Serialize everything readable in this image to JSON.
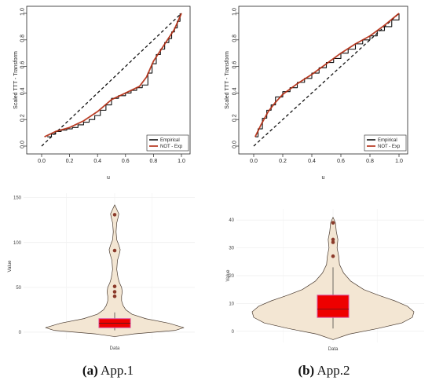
{
  "captions": [
    {
      "letter": "(a)",
      "text": " App.1"
    },
    {
      "letter": "(b)",
      "text": " App.2"
    }
  ],
  "colors": {
    "empirical": "#111111",
    "not_exp": "#b22a10",
    "diagonal": "#111111",
    "violin_fill": "#f3e6d3",
    "violin_edge": "#4a3b30",
    "box_fill": "#ee0000",
    "box_edge": "#d84a9a",
    "outlier": "#8b3a2a"
  },
  "chart_data": [
    {
      "type": "line",
      "id": "ttt-app1",
      "ylabel": "Scaled TTT - Transform",
      "xlabel": "u",
      "xlim": [
        0,
        1
      ],
      "ylim": [
        0,
        1
      ],
      "xticks": [
        "0.0",
        "0.2",
        "0.4",
        "0.6",
        "0.8",
        "1.0"
      ],
      "yticks": [
        "0.0",
        "0.2",
        "0.4",
        "0.6",
        "0.8",
        "1.0"
      ],
      "legend": {
        "position": "bottom-right",
        "entries": [
          "Empirical",
          "NOT - Exp"
        ]
      },
      "series": [
        {
          "name": "Empirical",
          "x": [
            0.04,
            0.07,
            0.1,
            0.14,
            0.18,
            0.22,
            0.26,
            0.3,
            0.34,
            0.38,
            0.42,
            0.46,
            0.5,
            0.55,
            0.6,
            0.64,
            0.68,
            0.72,
            0.76,
            0.79,
            0.82,
            0.85,
            0.88,
            0.91,
            0.93,
            0.95,
            0.97,
            0.99
          ],
          "y": [
            0.07,
            0.09,
            0.11,
            0.12,
            0.13,
            0.14,
            0.16,
            0.18,
            0.2,
            0.23,
            0.27,
            0.31,
            0.36,
            0.38,
            0.4,
            0.42,
            0.44,
            0.46,
            0.55,
            0.62,
            0.69,
            0.73,
            0.78,
            0.81,
            0.86,
            0.89,
            0.94,
            1.0
          ]
        },
        {
          "name": "NOT - Exp",
          "x": [
            0.02,
            0.1,
            0.2,
            0.3,
            0.4,
            0.5,
            0.6,
            0.7,
            0.75,
            0.8,
            0.85,
            0.9,
            0.95,
            1.0
          ],
          "y": [
            0.07,
            0.11,
            0.14,
            0.19,
            0.26,
            0.35,
            0.4,
            0.45,
            0.52,
            0.64,
            0.72,
            0.8,
            0.88,
            1.0
          ]
        }
      ]
    },
    {
      "type": "line",
      "id": "ttt-app2",
      "ylabel": "Scaled TTT - Transform",
      "xlabel": "u",
      "xlim": [
        0,
        1
      ],
      "ylim": [
        0,
        1
      ],
      "xticks": [
        "0.0",
        "0.2",
        "0.4",
        "0.6",
        "0.8",
        "1.0"
      ],
      "yticks": [
        "0.0",
        "0.2",
        "0.4",
        "0.6",
        "0.8",
        "1.0"
      ],
      "legend": {
        "position": "bottom-right",
        "entries": [
          "Empirical",
          "NOT - Exp"
        ]
      },
      "series": [
        {
          "name": "Empirical",
          "x": [
            0.01,
            0.03,
            0.06,
            0.09,
            0.12,
            0.15,
            0.2,
            0.25,
            0.3,
            0.35,
            0.4,
            0.45,
            0.5,
            0.55,
            0.6,
            0.65,
            0.7,
            0.75,
            0.8,
            0.85,
            0.9,
            0.95,
            1.0
          ],
          "y": [
            0.07,
            0.13,
            0.21,
            0.27,
            0.31,
            0.37,
            0.41,
            0.44,
            0.48,
            0.51,
            0.55,
            0.59,
            0.63,
            0.66,
            0.7,
            0.73,
            0.77,
            0.8,
            0.83,
            0.87,
            0.9,
            0.95,
            1.0
          ]
        },
        {
          "name": "NOT - Exp",
          "x": [
            0.01,
            0.05,
            0.1,
            0.15,
            0.2,
            0.3,
            0.4,
            0.5,
            0.6,
            0.7,
            0.8,
            0.9,
            1.0
          ],
          "y": [
            0.07,
            0.16,
            0.26,
            0.33,
            0.39,
            0.47,
            0.54,
            0.62,
            0.7,
            0.77,
            0.83,
            0.91,
            1.0
          ]
        }
      ]
    },
    {
      "type": "violin",
      "id": "violin-app1",
      "ylabel": "Value",
      "xlabel": "Data",
      "ylim": [
        -8,
        155
      ],
      "yticks": [
        0,
        50,
        100,
        150
      ],
      "box": {
        "q1": 5,
        "median": 10,
        "q3": 15,
        "whisker_low": 2,
        "whisker_high": 22
      },
      "outliers": [
        131,
        91,
        51,
        45,
        40
      ],
      "density": [
        [
          -5,
          0.0
        ],
        [
          -2,
          0.28
        ],
        [
          2,
          0.88
        ],
        [
          5,
          1.0
        ],
        [
          10,
          0.78
        ],
        [
          15,
          0.45
        ],
        [
          20,
          0.25
        ],
        [
          25,
          0.16
        ],
        [
          30,
          0.12
        ],
        [
          35,
          0.1
        ],
        [
          40,
          0.1
        ],
        [
          45,
          0.11
        ],
        [
          50,
          0.1
        ],
        [
          55,
          0.07
        ],
        [
          60,
          0.05
        ],
        [
          70,
          0.03
        ],
        [
          80,
          0.04
        ],
        [
          88,
          0.07
        ],
        [
          92,
          0.08
        ],
        [
          97,
          0.06
        ],
        [
          103,
          0.03
        ],
        [
          112,
          0.02
        ],
        [
          122,
          0.03
        ],
        [
          128,
          0.05
        ],
        [
          132,
          0.06
        ],
        [
          137,
          0.03
        ],
        [
          142,
          0.0
        ]
      ]
    },
    {
      "type": "violin",
      "id": "violin-app2",
      "ylabel": "Value",
      "xlabel": "Data",
      "ylim": [
        -4,
        44
      ],
      "yticks": [
        0,
        10,
        20,
        30,
        40
      ],
      "box": {
        "q1": 5,
        "median": 8,
        "q3": 13,
        "whisker_low": 1,
        "whisker_high": 23
      },
      "outliers": [
        39,
        33,
        32,
        27
      ],
      "density": [
        [
          -3,
          0.0
        ],
        [
          -1,
          0.2
        ],
        [
          1,
          0.55
        ],
        [
          3,
          0.85
        ],
        [
          5,
          0.98
        ],
        [
          7,
          1.0
        ],
        [
          9,
          0.92
        ],
        [
          11,
          0.76
        ],
        [
          13,
          0.56
        ],
        [
          15,
          0.38
        ],
        [
          18,
          0.22
        ],
        [
          21,
          0.13
        ],
        [
          24,
          0.08
        ],
        [
          27,
          0.07
        ],
        [
          30,
          0.05
        ],
        [
          33,
          0.06
        ],
        [
          36,
          0.04
        ],
        [
          39,
          0.03
        ],
        [
          41,
          0.0
        ]
      ]
    }
  ]
}
